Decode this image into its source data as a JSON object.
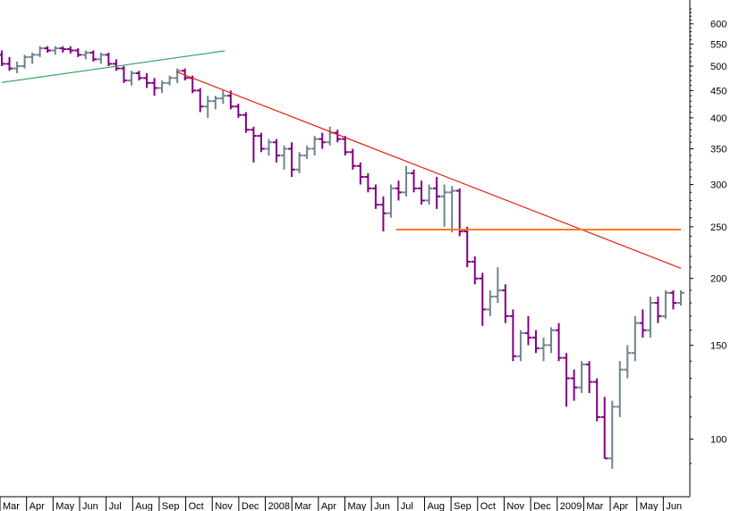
{
  "chart_data": {
    "type": "ohlc",
    "title": "",
    "xlabel": "",
    "ylabel": "",
    "y_scale": "log",
    "ylim": [
      78,
      660
    ],
    "grid": false,
    "y_ticks": [
      100,
      150,
      200,
      250,
      300,
      350,
      400,
      450,
      500,
      550,
      600
    ],
    "x_tick_labels": [
      "Mar",
      "Apr",
      "May",
      "Jun",
      "Jul",
      "Aug",
      "Sep",
      "Oct",
      "Nov",
      "Dec",
      "2008",
      "Mar",
      "Apr",
      "May",
      "Jun",
      "Jul",
      "Aug",
      "Sep",
      "Oct",
      "Nov",
      "Dec",
      "2009",
      "Mar",
      "Apr",
      "May",
      "Jun"
    ],
    "x_period": [
      "2007-02-26",
      "2009-06-19"
    ],
    "colors": {
      "up": "#6e8590",
      "down": "#800080",
      "uptrend_line": "#2e9e58",
      "downtrend_line": "#e02010",
      "support_line": "#ff7a1a",
      "frame": "#000000"
    },
    "series": [
      {
        "values": [
          [
            525,
            535,
            500,
            505
          ],
          [
            505,
            520,
            490,
            495
          ],
          [
            495,
            510,
            485,
            500
          ],
          [
            500,
            525,
            495,
            520
          ],
          [
            520,
            530,
            505,
            525
          ],
          [
            525,
            545,
            520,
            540
          ],
          [
            540,
            545,
            530,
            535
          ],
          [
            535,
            545,
            525,
            540
          ],
          [
            540,
            545,
            530,
            538
          ],
          [
            538,
            545,
            528,
            535
          ],
          [
            535,
            540,
            520,
            525
          ],
          [
            525,
            535,
            515,
            530
          ],
          [
            530,
            535,
            510,
            515
          ],
          [
            515,
            530,
            505,
            525
          ],
          [
            525,
            530,
            500,
            505
          ],
          [
            505,
            515,
            490,
            495
          ],
          [
            495,
            500,
            465,
            470
          ],
          [
            470,
            490,
            460,
            485
          ],
          [
            485,
            490,
            470,
            475
          ],
          [
            475,
            485,
            455,
            465
          ],
          [
            465,
            475,
            440,
            455
          ],
          [
            455,
            470,
            445,
            465
          ],
          [
            465,
            480,
            460,
            475
          ],
          [
            475,
            495,
            465,
            490
          ],
          [
            490,
            495,
            470,
            475
          ],
          [
            475,
            480,
            445,
            450
          ],
          [
            450,
            455,
            410,
            420
          ],
          [
            420,
            440,
            400,
            430
          ],
          [
            430,
            440,
            415,
            435
          ],
          [
            435,
            450,
            425,
            440
          ],
          [
            440,
            450,
            415,
            420
          ],
          [
            420,
            425,
            400,
            405
          ],
          [
            405,
            410,
            375,
            380
          ],
          [
            380,
            385,
            330,
            370
          ],
          [
            370,
            375,
            345,
            350
          ],
          [
            350,
            365,
            340,
            360
          ],
          [
            360,
            365,
            330,
            340
          ],
          [
            340,
            355,
            320,
            350
          ],
          [
            350,
            360,
            310,
            320
          ],
          [
            320,
            345,
            315,
            340
          ],
          [
            340,
            355,
            335,
            350
          ],
          [
            350,
            370,
            340,
            365
          ],
          [
            365,
            375,
            350,
            360
          ],
          [
            360,
            385,
            355,
            375
          ],
          [
            375,
            380,
            360,
            365
          ],
          [
            365,
            370,
            340,
            345
          ],
          [
            345,
            350,
            320,
            325
          ],
          [
            325,
            330,
            300,
            310
          ],
          [
            310,
            315,
            290,
            295
          ],
          [
            295,
            300,
            270,
            275
          ],
          [
            275,
            285,
            245,
            265
          ],
          [
            265,
            300,
            260,
            295
          ],
          [
            295,
            305,
            280,
            290
          ],
          [
            290,
            325,
            285,
            315
          ],
          [
            315,
            320,
            290,
            295
          ],
          [
            295,
            305,
            275,
            280
          ],
          [
            280,
            300,
            275,
            295
          ],
          [
            295,
            310,
            270,
            285
          ],
          [
            285,
            300,
            250,
            290
          ],
          [
            290,
            298,
            244,
            292
          ],
          [
            292,
            295,
            240,
            245
          ],
          [
            245,
            250,
            210,
            215
          ],
          [
            215,
            220,
            195,
            200
          ],
          [
            200,
            205,
            163,
            175
          ],
          [
            175,
            190,
            170,
            185
          ],
          [
            185,
            210,
            180,
            190
          ],
          [
            190,
            195,
            165,
            170
          ],
          [
            170,
            175,
            140,
            143
          ],
          [
            143,
            160,
            140,
            158
          ],
          [
            158,
            170,
            150,
            155
          ],
          [
            155,
            160,
            145,
            148
          ],
          [
            148,
            155,
            140,
            150
          ],
          [
            150,
            162,
            145,
            160
          ],
          [
            160,
            165,
            140,
            142
          ],
          [
            142,
            145,
            115,
            130
          ],
          [
            130,
            135,
            118,
            125
          ],
          [
            125,
            140,
            122,
            138
          ],
          [
            138,
            140,
            122,
            128
          ],
          [
            128,
            130,
            108,
            110
          ],
          [
            110,
            120,
            92,
            92
          ],
          [
            92,
            118,
            88,
            115
          ],
          [
            115,
            140,
            110,
            135
          ],
          [
            135,
            150,
            130,
            145
          ],
          [
            145,
            170,
            140,
            165
          ],
          [
            165,
            175,
            155,
            160
          ],
          [
            160,
            185,
            155,
            180
          ],
          [
            180,
            185,
            165,
            170
          ],
          [
            170,
            190,
            168,
            188
          ],
          [
            188,
            190,
            175,
            180
          ],
          [
            180,
            190,
            178,
            188
          ]
        ]
      }
    ],
    "trendlines": [
      {
        "kind": "uptrend",
        "from": [
          "2007-02-26",
          466
        ],
        "to": [
          "2007-11-30",
          534
        ]
      },
      {
        "kind": "downtrend",
        "from": [
          "2007-10-01",
          488
        ],
        "to": [
          "2009-06-19",
          209
        ]
      },
      {
        "kind": "support",
        "from": [
          "2008-06-30",
          247
        ],
        "to": [
          "2009-06-19",
          247
        ]
      }
    ]
  }
}
